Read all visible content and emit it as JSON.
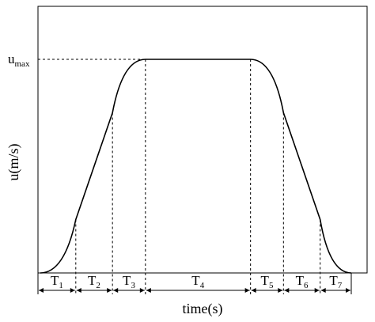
{
  "chart_data": {
    "type": "line",
    "title": "",
    "xlabel": "time(s)",
    "ylabel": "u(m/s)",
    "y_tick_labels": [
      {
        "text": "u",
        "sub": "max"
      }
    ],
    "phases": [
      {
        "base": "T",
        "sub": "1"
      },
      {
        "base": "T",
        "sub": "2"
      },
      {
        "base": "T",
        "sub": "3"
      },
      {
        "base": "T",
        "sub": "4"
      },
      {
        "base": "T",
        "sub": "5"
      },
      {
        "base": "T",
        "sub": "6"
      },
      {
        "base": "T",
        "sub": "7"
      }
    ],
    "phase_boundaries": [
      0.0,
      0.114,
      0.232,
      0.338,
      0.676,
      0.782,
      0.9,
      1.0
    ],
    "series": [
      {
        "x": [
          0.0,
          0.114,
          0.232,
          0.338,
          0.676,
          0.782,
          0.9,
          1.0
        ],
        "y": [
          0.0,
          0.25,
          0.75,
          1.0,
          1.0,
          0.75,
          0.25,
          0.0
        ]
      }
    ],
    "xlim": [
      0,
      1
    ],
    "ylim": [
      0,
      1.0
    ],
    "grid": false,
    "legend": "none",
    "colors": {
      "line": "#000000",
      "axis": "#000000"
    }
  }
}
